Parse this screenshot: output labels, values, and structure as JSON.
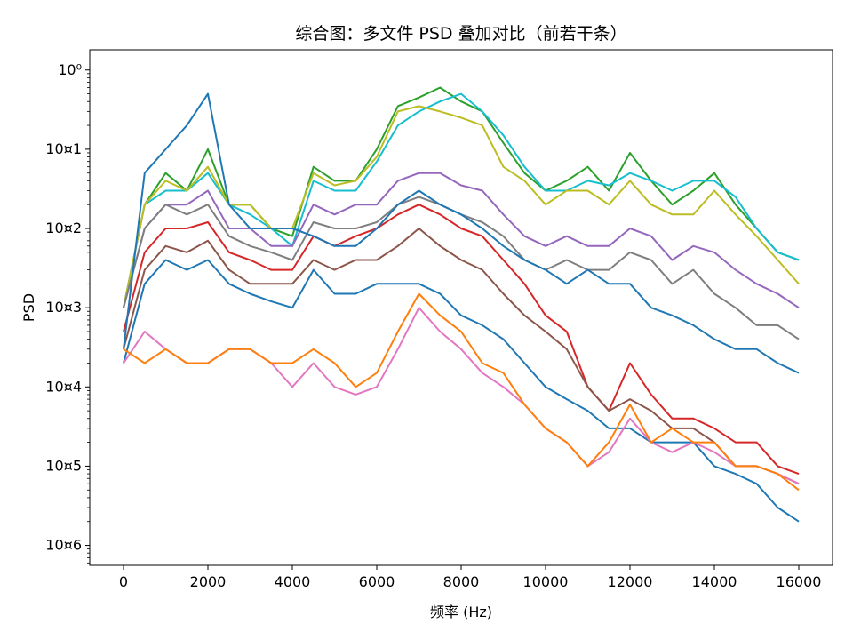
{
  "chart_data": {
    "type": "line",
    "title": "综合图：多文件 PSD 叠加对比（前若干条）",
    "xlabel": "频率 (Hz)",
    "ylabel": "PSD",
    "xscale": "linear",
    "yscale": "log",
    "xlim": [
      -800,
      16800
    ],
    "ylim": [
      5.6e-07,
      1.8
    ],
    "x_ticks": [
      0,
      2000,
      4000,
      6000,
      8000,
      10000,
      12000,
      14000,
      16000
    ],
    "x_tick_labels": [
      "0",
      "2000",
      "4000",
      "6000",
      "8000",
      "10000",
      "12000",
      "14000",
      "16000"
    ],
    "y_ticks": [
      1,
      0.1,
      0.01,
      0.001,
      0.0001,
      1e-05,
      1e-06
    ],
    "y_tick_labels": [
      "10⁰",
      "10¤1",
      "10¤2",
      "10¤3",
      "10¤4",
      "10¤5",
      "10¤6"
    ],
    "grid": false,
    "legend": "none",
    "x": [
      0,
      500,
      1000,
      1500,
      2000,
      2500,
      3000,
      3500,
      4000,
      4500,
      5000,
      5500,
      6000,
      6500,
      7000,
      7500,
      8000,
      8500,
      9000,
      9500,
      10000,
      10500,
      11000,
      11500,
      12000,
      12500,
      13000,
      13500,
      14000,
      14500,
      15000,
      15500,
      16000
    ],
    "series": [
      {
        "color": "#2ca02c",
        "values": [
          0.001,
          0.02,
          0.05,
          0.03,
          0.1,
          0.02,
          0.02,
          0.01,
          0.008,
          0.06,
          0.04,
          0.04,
          0.1,
          0.35,
          0.45,
          0.6,
          0.4,
          0.3,
          0.12,
          0.05,
          0.03,
          0.04,
          0.06,
          0.03,
          0.09,
          0.04,
          0.02,
          0.03,
          0.05,
          0.02,
          0.01,
          0.005,
          0.004
        ]
      },
      {
        "color": "#17becf",
        "values": [
          0.001,
          0.02,
          0.03,
          0.03,
          0.05,
          0.02,
          0.015,
          0.01,
          0.006,
          0.04,
          0.03,
          0.03,
          0.07,
          0.2,
          0.3,
          0.4,
          0.5,
          0.3,
          0.15,
          0.06,
          0.03,
          0.03,
          0.04,
          0.035,
          0.05,
          0.04,
          0.03,
          0.04,
          0.04,
          0.025,
          0.01,
          0.005,
          0.004
        ]
      },
      {
        "color": "#bcbd22",
        "values": [
          0.001,
          0.02,
          0.04,
          0.03,
          0.06,
          0.02,
          0.02,
          0.01,
          0.01,
          0.05,
          0.035,
          0.04,
          0.08,
          0.3,
          0.35,
          0.3,
          0.25,
          0.2,
          0.06,
          0.04,
          0.02,
          0.03,
          0.03,
          0.02,
          0.04,
          0.02,
          0.015,
          0.015,
          0.03,
          0.015,
          0.008,
          0.004,
          0.002
        ]
      },
      {
        "color": "#9467bd",
        "values": [
          0.001,
          0.01,
          0.02,
          0.02,
          0.03,
          0.01,
          0.01,
          0.006,
          0.006,
          0.02,
          0.015,
          0.02,
          0.02,
          0.04,
          0.05,
          0.05,
          0.035,
          0.03,
          0.015,
          0.008,
          0.006,
          0.008,
          0.006,
          0.006,
          0.01,
          0.008,
          0.004,
          0.006,
          0.005,
          0.003,
          0.002,
          0.0015,
          0.001
        ]
      },
      {
        "color": "#7f7f7f",
        "values": [
          0.001,
          0.01,
          0.02,
          0.015,
          0.02,
          0.008,
          0.006,
          0.005,
          0.004,
          0.012,
          0.01,
          0.01,
          0.012,
          0.02,
          0.025,
          0.02,
          0.015,
          0.012,
          0.008,
          0.004,
          0.003,
          0.004,
          0.003,
          0.003,
          0.005,
          0.004,
          0.002,
          0.003,
          0.0015,
          0.001,
          0.0006,
          0.0006,
          0.0004
        ]
      },
      {
        "color": "#d62728",
        "values": [
          0.0005,
          0.005,
          0.01,
          0.01,
          0.012,
          0.005,
          0.004,
          0.003,
          0.003,
          0.008,
          0.006,
          0.008,
          0.01,
          0.015,
          0.02,
          0.015,
          0.01,
          0.008,
          0.004,
          0.002,
          0.0008,
          0.0005,
          0.0001,
          5e-05,
          0.0002,
          8e-05,
          4e-05,
          4e-05,
          3e-05,
          2e-05,
          2e-05,
          1e-05,
          8e-06
        ]
      },
      {
        "color": "#8c564b",
        "values": [
          0.0003,
          0.003,
          0.006,
          0.005,
          0.007,
          0.003,
          0.002,
          0.002,
          0.002,
          0.004,
          0.003,
          0.004,
          0.004,
          0.006,
          0.01,
          0.006,
          0.004,
          0.003,
          0.0015,
          0.0008,
          0.0005,
          0.0003,
          0.0001,
          5e-05,
          7e-05,
          5e-05,
          3e-05,
          3e-05,
          2e-05,
          1e-05,
          1e-05,
          8e-06,
          6e-06
        ]
      },
      {
        "color": "#1f77b4",
        "values": [
          0.0002,
          0.002,
          0.004,
          0.003,
          0.004,
          0.002,
          0.0015,
          0.0012,
          0.001,
          0.003,
          0.0015,
          0.0015,
          0.002,
          0.002,
          0.002,
          0.0015,
          0.0008,
          0.0006,
          0.0004,
          0.0002,
          0.0001,
          7e-05,
          5e-05,
          3e-05,
          3e-05,
          2e-05,
          2e-05,
          2e-05,
          1e-05,
          8e-06,
          6e-06,
          3e-06,
          2e-06
        ]
      },
      {
        "color": "#e377c2",
        "values": [
          0.0002,
          0.0005,
          0.0003,
          0.0002,
          0.0002,
          0.0003,
          0.0003,
          0.0002,
          0.0001,
          0.0002,
          0.0001,
          8e-05,
          0.0001,
          0.0003,
          0.001,
          0.0005,
          0.0003,
          0.00015,
          0.0001,
          6e-05,
          3e-05,
          2e-05,
          1e-05,
          1.5e-05,
          4e-05,
          2e-05,
          1.5e-05,
          2e-05,
          1.5e-05,
          1e-05,
          1e-05,
          8e-06,
          6e-06
        ]
      },
      {
        "color": "#ff7f0e",
        "values": [
          0.0003,
          0.0002,
          0.0003,
          0.0002,
          0.0002,
          0.0003,
          0.0003,
          0.0002,
          0.0002,
          0.0003,
          0.0002,
          0.0001,
          0.00015,
          0.0005,
          0.0015,
          0.0008,
          0.0005,
          0.0002,
          0.00015,
          6e-05,
          3e-05,
          2e-05,
          1e-05,
          2e-05,
          6e-05,
          2e-05,
          3e-05,
          2e-05,
          2e-05,
          1e-05,
          1e-05,
          8e-06,
          5e-06
        ]
      },
      {
        "color": "#1f77b4",
        "values": [
          0.0003,
          0.05,
          0.1,
          0.2,
          0.5,
          0.02,
          0.01,
          0.01,
          0.01,
          0.008,
          0.006,
          0.006,
          0.01,
          0.02,
          0.03,
          0.02,
          0.015,
          0.01,
          0.006,
          0.004,
          0.003,
          0.002,
          0.003,
          0.002,
          0.002,
          0.001,
          0.0008,
          0.0006,
          0.0004,
          0.0003,
          0.0003,
          0.0002,
          0.00015
        ]
      }
    ]
  }
}
